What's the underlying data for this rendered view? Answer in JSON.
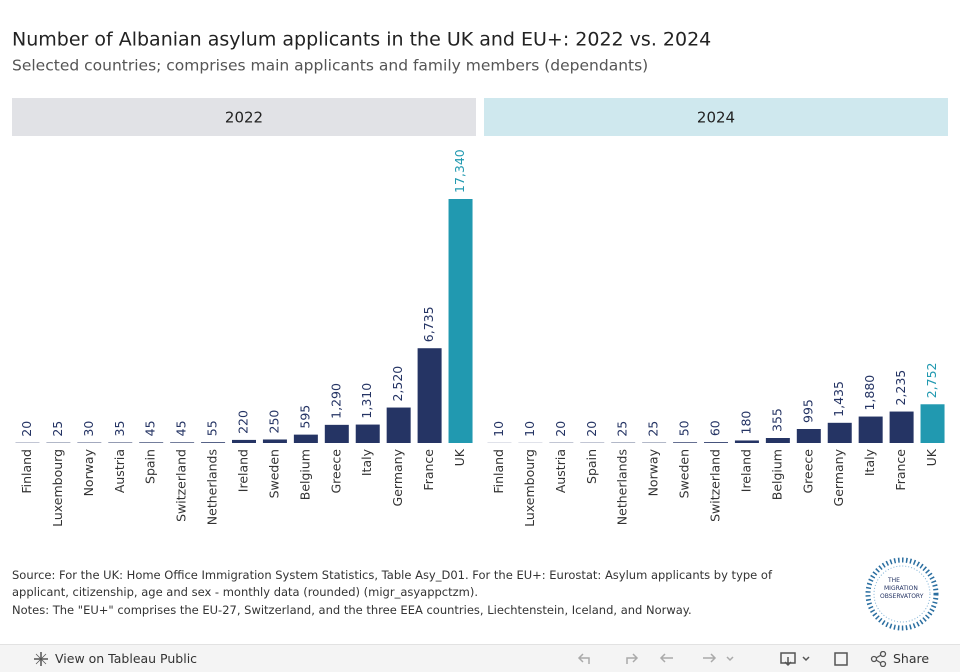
{
  "header": {
    "title": "Number of Albanian asylum applicants in the UK and EU+: 2022 vs. 2024",
    "subtitle": "Selected countries; comprises main applicants and family members (dependants)"
  },
  "chart_data": [
    {
      "type": "bar",
      "title": "2022",
      "header_color": "#e1e2e6",
      "categories": [
        "Finland",
        "Luxembourg",
        "Norway",
        "Austria",
        "Spain",
        "Switzerland",
        "Netherlands",
        "Ireland",
        "Sweden",
        "Belgium",
        "Greece",
        "Italy",
        "Germany",
        "France",
        "UK"
      ],
      "values": [
        20,
        25,
        30,
        35,
        45,
        45,
        55,
        220,
        250,
        595,
        1290,
        1310,
        2520,
        6735,
        17340
      ],
      "value_labels": [
        "20",
        "25",
        "30",
        "35",
        "45",
        "45",
        "55",
        "220",
        "250",
        "595",
        "1,290",
        "1,310",
        "2,520",
        "6,735",
        "17,340"
      ],
      "colors": [
        "#253464",
        "#253464",
        "#253464",
        "#253464",
        "#253464",
        "#253464",
        "#253464",
        "#253464",
        "#253464",
        "#253464",
        "#253464",
        "#253464",
        "#253464",
        "#253464",
        "#2199b0"
      ]
    },
    {
      "type": "bar",
      "title": "2024",
      "header_color": "#cfe8ee",
      "categories": [
        "Finland",
        "Luxembourg",
        "Austria",
        "Spain",
        "Netherlands",
        "Norway",
        "Sweden",
        "Switzerland",
        "Ireland",
        "Belgium",
        "Greece",
        "Germany",
        "Italy",
        "France",
        "UK"
      ],
      "values": [
        10,
        10,
        20,
        20,
        25,
        25,
        50,
        60,
        180,
        355,
        995,
        1435,
        1880,
        2235,
        2752
      ],
      "value_labels": [
        "10",
        "10",
        "20",
        "20",
        "25",
        "25",
        "50",
        "60",
        "180",
        "355",
        "995",
        "1,435",
        "1,880",
        "2,235",
        "2,752"
      ],
      "colors": [
        "#253464",
        "#253464",
        "#253464",
        "#253464",
        "#253464",
        "#253464",
        "#253464",
        "#253464",
        "#253464",
        "#253464",
        "#253464",
        "#253464",
        "#253464",
        "#253464",
        "#2199b0"
      ]
    }
  ],
  "footer": {
    "source": "Source: For the UK: Home Office Immigration System Statistics, Table Asy_D01. For the EU+: Eurostat: Asylum applicants by type of applicant, citizenship, age and sex - monthly data (rounded) (migr_asyappctzm).",
    "notes": "Notes: The \"EU+\" comprises the EU-27, Switzerland, and the three EEA countries, Liechtenstein, Iceland, and Norway."
  },
  "logo": {
    "lines": [
      "THE",
      "MIGRATION",
      "OBSERVATORY"
    ]
  },
  "toolbar": {
    "view": "View on Tableau Public",
    "share": "Share"
  }
}
